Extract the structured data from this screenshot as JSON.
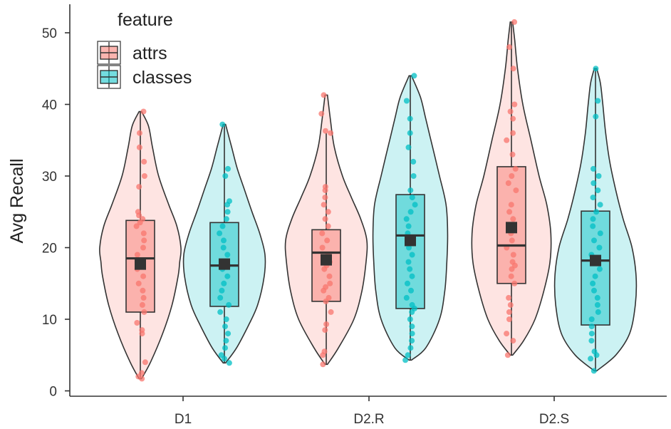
{
  "chart_data": {
    "type": "violin",
    "title": "",
    "xlabel": "",
    "ylabel": "Avg Recall",
    "ylim": [
      -0.5,
      54
    ],
    "yticks": [
      0,
      10,
      20,
      30,
      40,
      50
    ],
    "categories": [
      "D1",
      "D2.R",
      "D2.S"
    ],
    "grid": false,
    "legend": {
      "title": "feature",
      "position": "top-left"
    },
    "colors": {
      "attrs": "#F8766D",
      "classes": "#00BFC4",
      "outline": "#333333"
    },
    "series": [
      {
        "name": "attrs",
        "groups": [
          {
            "category": "D1",
            "box": {
              "q1": 11,
              "median": 18.5,
              "q3": 23.8,
              "whisker_low": 1.7,
              "whisker_high": 39
            },
            "mean": 17.7,
            "violin": [
              [
                1.7,
                0.03
              ],
              [
                4,
                0.25
              ],
              [
                8,
                0.55
              ],
              [
                12,
                0.78
              ],
              [
                16,
                0.93
              ],
              [
                18,
                0.97
              ],
              [
                20,
                1.0
              ],
              [
                23,
                0.9
              ],
              [
                26,
                0.7
              ],
              [
                30,
                0.45
              ],
              [
                34,
                0.3
              ],
              [
                37,
                0.2
              ],
              [
                39,
                0.03
              ]
            ],
            "points": [
              1.7,
              2,
              2.5,
              4,
              8,
              8.5,
              9.5,
              11,
              12,
              13,
              14,
              15,
              16,
              17,
              17.5,
              18,
              19,
              20,
              21,
              22,
              23,
              23.5,
              24,
              24.5,
              25,
              28.5,
              30,
              32,
              34,
              36,
              39
            ]
          },
          {
            "category": "D2.R",
            "box": {
              "q1": 12.5,
              "median": 19.3,
              "q3": 22.5,
              "whisker_low": 3.7,
              "whisker_high": 36
            },
            "mean": 18.3,
            "violin": [
              [
                3.7,
                0.03
              ],
              [
                6,
                0.3
              ],
              [
                10,
                0.68
              ],
              [
                14,
                0.88
              ],
              [
                18,
                0.98
              ],
              [
                21,
                1.0
              ],
              [
                24,
                0.85
              ],
              [
                27,
                0.62
              ],
              [
                30,
                0.4
              ],
              [
                34,
                0.2
              ],
              [
                38,
                0.1
              ],
              [
                41.3,
                0.03
              ]
            ],
            "points": [
              3.7,
              5,
              5.5,
              8.5,
              9.3,
              11,
              12.5,
              13,
              14,
              14.5,
              15,
              16,
              17,
              17.5,
              18,
              19,
              20,
              21,
              22,
              23,
              24,
              25,
              26,
              27,
              28,
              28.5,
              36,
              36.3,
              38.7,
              41.3
            ]
          },
          {
            "category": "D2.S",
            "box": {
              "q1": 15,
              "median": 20.3,
              "q3": 31.3,
              "whisker_low": 5,
              "whisker_high": 51.5
            },
            "mean": 22.8,
            "violin": [
              [
                5,
                0.03
              ],
              [
                7,
                0.3
              ],
              [
                10,
                0.58
              ],
              [
                14,
                0.8
              ],
              [
                18,
                0.95
              ],
              [
                22,
                0.97
              ],
              [
                26,
                0.87
              ],
              [
                30,
                0.68
              ],
              [
                35,
                0.48
              ],
              [
                40,
                0.28
              ],
              [
                45,
                0.15
              ],
              [
                49,
                0.08
              ],
              [
                51.5,
                0.03
              ]
            ],
            "points": [
              5,
              7,
              8,
              10,
              11,
              12,
              13,
              15,
              16,
              17,
              17.5,
              18,
              19,
              20,
              21,
              22,
              23,
              24,
              25,
              26,
              28,
              29,
              30,
              31,
              33,
              35,
              36,
              38,
              39,
              40,
              45,
              48,
              51.5
            ]
          }
        ]
      },
      {
        "name": "classes",
        "groups": [
          {
            "category": "D1",
            "box": {
              "q1": 11.8,
              "median": 17.5,
              "q3": 23.5,
              "whisker_low": 3.9,
              "whisker_high": 37.2
            },
            "mean": 17.7,
            "violin": [
              [
                3.9,
                0.03
              ],
              [
                6,
                0.3
              ],
              [
                9,
                0.58
              ],
              [
                12,
                0.82
              ],
              [
                16,
                0.98
              ],
              [
                19,
                1.0
              ],
              [
                22,
                0.87
              ],
              [
                25,
                0.68
              ],
              [
                28,
                0.5
              ],
              [
                31,
                0.32
              ],
              [
                34,
                0.18
              ],
              [
                37.2,
                0.03
              ]
            ],
            "points": [
              3.9,
              4.5,
              5,
              6,
              7,
              8,
              9,
              10,
              11,
              12,
              13,
              14,
              15,
              16,
              17,
              17.5,
              18,
              19,
              20,
              21,
              22,
              23,
              24,
              25,
              26,
              26.5,
              30,
              31,
              37.2
            ]
          },
          {
            "category": "D2.R",
            "box": {
              "q1": 11.5,
              "median": 21.7,
              "q3": 27.4,
              "whisker_low": 4.3,
              "whisker_high": 44
            },
            "mean": 21,
            "violin": [
              [
                4.3,
                0.03
              ],
              [
                6,
                0.38
              ],
              [
                10,
                0.72
              ],
              [
                14,
                0.85
              ],
              [
                18,
                0.9
              ],
              [
                22,
                0.92
              ],
              [
                26,
                0.88
              ],
              [
                30,
                0.72
              ],
              [
                34,
                0.55
              ],
              [
                38,
                0.38
              ],
              [
                41,
                0.25
              ],
              [
                44,
                0.03
              ]
            ],
            "points": [
              4.3,
              5,
              6,
              7,
              8,
              9,
              10,
              11,
              11.5,
              12,
              13,
              14,
              15,
              16,
              17,
              18,
              19,
              20,
              21,
              22,
              23,
              24,
              25,
              26,
              27,
              28,
              30,
              32,
              34,
              36,
              38,
              40.5,
              44
            ]
          },
          {
            "category": "D2.S",
            "box": {
              "q1": 9.2,
              "median": 18.2,
              "q3": 25.1,
              "whisker_low": 2.8,
              "whisker_high": 45
            },
            "mean": 18.2,
            "violin": [
              [
                2.8,
                0.03
              ],
              [
                5,
                0.5
              ],
              [
                8,
                0.84
              ],
              [
                12,
                0.98
              ],
              [
                16,
                1.0
              ],
              [
                20,
                0.9
              ],
              [
                24,
                0.68
              ],
              [
                28,
                0.5
              ],
              [
                32,
                0.35
              ],
              [
                36,
                0.25
              ],
              [
                40,
                0.18
              ],
              [
                43,
                0.12
              ],
              [
                45,
                0.03
              ]
            ],
            "points": [
              2.8,
              4.5,
              5,
              5.5,
              7,
              8,
              9,
              10,
              11,
              12,
              13,
              14,
              15,
              16,
              17,
              18,
              19,
              20,
              21,
              22,
              23,
              24,
              25,
              26,
              27,
              28,
              29,
              30,
              31,
              38.3,
              40.5,
              45
            ]
          }
        ]
      }
    ]
  }
}
